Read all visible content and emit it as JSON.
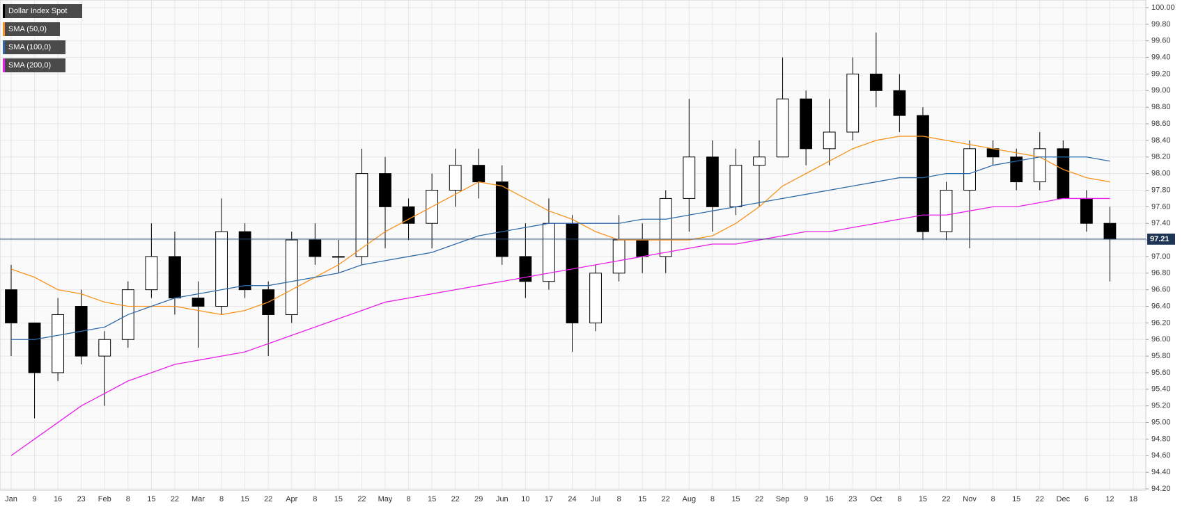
{
  "chart_data": {
    "type": "candlestick",
    "categories": [
      "Jan",
      "9",
      "16",
      "23",
      "Feb",
      "8",
      "15",
      "22",
      "Mar",
      "8",
      "15",
      "22",
      "Apr",
      "8",
      "15",
      "22",
      "May",
      "8",
      "15",
      "22",
      "29",
      "Jun",
      "10",
      "17",
      "24",
      "Jul",
      "8",
      "15",
      "22",
      "Aug",
      "8",
      "15",
      "22",
      "Sep",
      "9",
      "16",
      "23",
      "Oct",
      "8",
      "15",
      "22",
      "Nov",
      "8",
      "15",
      "22",
      "Dec",
      "6",
      "12",
      "18"
    ],
    "series": [
      {
        "name": "Dollar Index Spot",
        "color": "#000000",
        "open": [
          96.6,
          96.2,
          95.6,
          96.4,
          95.8,
          96.0,
          96.6,
          97.0,
          96.5,
          96.4,
          97.3,
          96.6,
          96.3,
          97.2,
          97.0,
          97.0,
          98.0,
          97.6,
          97.4,
          97.8,
          98.1,
          97.9,
          97.0,
          96.7,
          97.4,
          96.2,
          96.8,
          97.2,
          97.0,
          97.7,
          98.2,
          97.6,
          98.1,
          98.2,
          98.9,
          98.3,
          98.5,
          99.2,
          99.0,
          98.7,
          97.3,
          97.8,
          98.3,
          98.2,
          97.9,
          98.3,
          97.7,
          97.4,
          null
        ],
        "high": [
          96.9,
          96.2,
          96.5,
          96.6,
          96.1,
          96.7,
          97.4,
          97.3,
          96.7,
          97.7,
          97.4,
          96.7,
          97.3,
          97.4,
          97.2,
          98.3,
          98.2,
          97.7,
          98.0,
          98.3,
          98.3,
          98.1,
          97.4,
          97.7,
          97.5,
          96.9,
          97.5,
          97.4,
          97.8,
          98.9,
          98.4,
          98.3,
          98.4,
          99.4,
          99.0,
          98.9,
          99.4,
          99.7,
          99.2,
          98.8,
          97.9,
          98.4,
          98.4,
          98.3,
          98.5,
          98.4,
          97.8,
          97.6,
          null
        ],
        "low": [
          95.8,
          95.05,
          95.5,
          95.7,
          95.2,
          95.9,
          96.5,
          96.3,
          95.9,
          96.3,
          96.5,
          95.8,
          96.2,
          96.9,
          96.8,
          96.9,
          97.1,
          97.2,
          97.1,
          97.6,
          97.7,
          96.9,
          96.5,
          96.6,
          95.85,
          96.1,
          96.7,
          96.8,
          96.8,
          97.3,
          97.3,
          97.5,
          97.6,
          98.2,
          98.1,
          98.1,
          98.4,
          98.8,
          98.5,
          97.2,
          97.2,
          97.1,
          98.1,
          97.8,
          97.8,
          97.7,
          97.3,
          96.7,
          null
        ],
        "close": [
          96.2,
          95.6,
          96.3,
          95.8,
          96.0,
          96.6,
          97.0,
          96.5,
          96.4,
          97.3,
          96.6,
          96.3,
          97.2,
          97.0,
          97.0,
          98.0,
          97.6,
          97.4,
          97.8,
          98.1,
          97.9,
          97.0,
          96.7,
          97.4,
          96.2,
          96.8,
          97.2,
          97.0,
          97.7,
          98.2,
          97.6,
          98.1,
          98.2,
          98.9,
          98.3,
          98.5,
          99.2,
          99.0,
          98.7,
          97.3,
          97.8,
          98.3,
          98.2,
          97.9,
          98.3,
          97.7,
          97.4,
          97.21,
          null
        ]
      },
      {
        "name": "SMA (50,0)",
        "color": "#f7931e",
        "values": [
          96.85,
          96.75,
          96.6,
          96.55,
          96.45,
          96.4,
          96.4,
          96.4,
          96.35,
          96.3,
          96.35,
          96.45,
          96.6,
          96.75,
          96.9,
          97.1,
          97.3,
          97.45,
          97.6,
          97.75,
          97.9,
          97.85,
          97.7,
          97.55,
          97.45,
          97.3,
          97.2,
          97.2,
          97.2,
          97.2,
          97.25,
          97.4,
          97.6,
          97.85,
          98.0,
          98.15,
          98.3,
          98.4,
          98.45,
          98.45,
          98.4,
          98.35,
          98.3,
          98.25,
          98.2,
          98.05,
          97.95,
          97.9,
          null
        ]
      },
      {
        "name": "SMA (100,0)",
        "color": "#2f6aa8",
        "values": [
          96.0,
          96.0,
          96.05,
          96.1,
          96.15,
          96.3,
          96.4,
          96.5,
          96.55,
          96.6,
          96.65,
          96.65,
          96.7,
          96.75,
          96.8,
          96.9,
          96.95,
          97.0,
          97.05,
          97.15,
          97.25,
          97.3,
          97.35,
          97.4,
          97.4,
          97.4,
          97.4,
          97.45,
          97.45,
          97.5,
          97.55,
          97.6,
          97.65,
          97.7,
          97.75,
          97.8,
          97.85,
          97.9,
          97.95,
          97.95,
          98.0,
          98.0,
          98.1,
          98.15,
          98.2,
          98.2,
          98.2,
          98.15,
          null
        ]
      },
      {
        "name": "SMA (200,0)",
        "color": "#e81ee8",
        "values": [
          94.6,
          94.8,
          95.0,
          95.2,
          95.35,
          95.5,
          95.6,
          95.7,
          95.75,
          95.8,
          95.85,
          95.95,
          96.05,
          96.15,
          96.25,
          96.35,
          96.45,
          96.5,
          96.55,
          96.6,
          96.65,
          96.7,
          96.75,
          96.8,
          96.85,
          96.9,
          96.95,
          97.0,
          97.05,
          97.1,
          97.15,
          97.15,
          97.2,
          97.25,
          97.3,
          97.3,
          97.35,
          97.4,
          97.45,
          97.5,
          97.5,
          97.55,
          97.6,
          97.6,
          97.65,
          97.7,
          97.7,
          97.7,
          null
        ]
      }
    ],
    "ylim": [
      94.2,
      100.0
    ],
    "yticks": [
      {
        "value": 94.2,
        "label": "94.20"
      },
      {
        "value": 94.4,
        "label": "94.40"
      },
      {
        "value": 94.6,
        "label": "94.60"
      },
      {
        "value": 94.8,
        "label": "94.80"
      },
      {
        "value": 95.0,
        "label": "95.00"
      },
      {
        "value": 95.2,
        "label": "95.20"
      },
      {
        "value": 95.4,
        "label": "95.40"
      },
      {
        "value": 95.6,
        "label": "95.60"
      },
      {
        "value": 95.8,
        "label": "95.80"
      },
      {
        "value": 96.0,
        "label": "96.00"
      },
      {
        "value": 96.2,
        "label": "96.20"
      },
      {
        "value": 96.4,
        "label": "96.40"
      },
      {
        "value": 96.6,
        "label": "96.60"
      },
      {
        "value": 96.8,
        "label": "96.80"
      },
      {
        "value": 97.0,
        "label": "97.00"
      },
      {
        "value": 97.2,
        "label": "97.20"
      },
      {
        "value": 97.4,
        "label": "97.40"
      },
      {
        "value": 97.6,
        "label": "97.60"
      },
      {
        "value": 97.8,
        "label": "97.80"
      },
      {
        "value": 98.0,
        "label": "98.00"
      },
      {
        "value": 98.2,
        "label": "98.20"
      },
      {
        "value": 98.4,
        "label": "98.40"
      },
      {
        "value": 98.6,
        "label": "98.60"
      },
      {
        "value": 98.8,
        "label": "98.80"
      },
      {
        "value": 99.0,
        "label": "99.00"
      },
      {
        "value": 99.2,
        "label": "99.20"
      },
      {
        "value": 99.4,
        "label": "99.40"
      },
      {
        "value": 99.6,
        "label": "99.60"
      },
      {
        "value": 99.8,
        "label": "99.80"
      },
      {
        "value": 100.0,
        "label": "100.00"
      }
    ],
    "grid": true,
    "up_color": "#ffffff",
    "down_color": "#000000"
  }
}
